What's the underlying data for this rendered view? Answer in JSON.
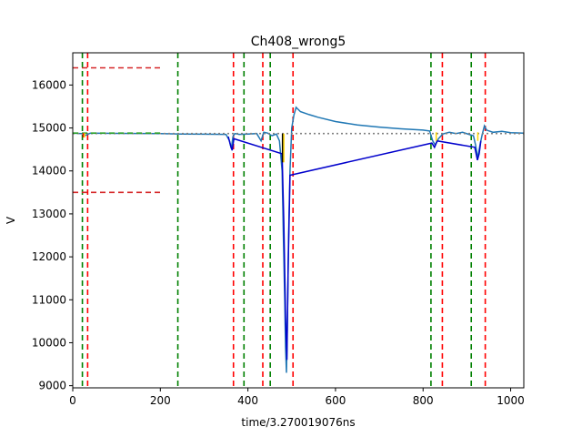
{
  "chart_data": {
    "type": "line",
    "title": "Ch408_wrong5",
    "xlabel": "time/3.270019076ns",
    "ylabel": "V",
    "xlim": [
      0,
      1030
    ],
    "ylim": [
      8950,
      16750
    ],
    "grid": false,
    "x_ticks": [
      "0",
      "200",
      "400",
      "600",
      "800",
      "1000"
    ],
    "y_ticks": [
      "9000",
      "10000",
      "11000",
      "12000",
      "13000",
      "14000",
      "15000",
      "16000"
    ],
    "series": [
      {
        "color": "#1f77b4",
        "style": "solid",
        "points": [
          [
            0,
            14880
          ],
          [
            20,
            14870
          ],
          [
            30,
            14830
          ],
          [
            40,
            14880
          ],
          [
            100,
            14875
          ],
          [
            200,
            14870
          ],
          [
            250,
            14860
          ],
          [
            300,
            14855
          ],
          [
            350,
            14850
          ],
          [
            358,
            14700
          ],
          [
            362,
            14520
          ],
          [
            366,
            14800
          ],
          [
            370,
            14870
          ],
          [
            380,
            14850
          ],
          [
            400,
            14860
          ],
          [
            420,
            14870
          ],
          [
            430,
            14700
          ],
          [
            436,
            14900
          ],
          [
            445,
            14880
          ],
          [
            455,
            14820
          ],
          [
            465,
            14860
          ],
          [
            472,
            14700
          ],
          [
            478,
            14000
          ],
          [
            481,
            12500
          ],
          [
            484,
            11000
          ],
          [
            486,
            9900
          ],
          [
            488,
            9300
          ],
          [
            490,
            10500
          ],
          [
            493,
            12500
          ],
          [
            496,
            14000
          ],
          [
            500,
            15000
          ],
          [
            505,
            15300
          ],
          [
            510,
            15480
          ],
          [
            520,
            15380
          ],
          [
            540,
            15310
          ],
          [
            560,
            15250
          ],
          [
            600,
            15150
          ],
          [
            650,
            15070
          ],
          [
            700,
            15020
          ],
          [
            750,
            14980
          ],
          [
            800,
            14950
          ],
          [
            815,
            14930
          ],
          [
            822,
            14700
          ],
          [
            828,
            14600
          ],
          [
            835,
            14750
          ],
          [
            845,
            14860
          ],
          [
            860,
            14900
          ],
          [
            875,
            14870
          ],
          [
            890,
            14900
          ],
          [
            905,
            14850
          ],
          [
            915,
            14820
          ],
          [
            920,
            14600
          ],
          [
            925,
            14300
          ],
          [
            930,
            14600
          ],
          [
            935,
            14850
          ],
          [
            940,
            15050
          ],
          [
            945,
            14950
          ],
          [
            960,
            14900
          ],
          [
            980,
            14920
          ],
          [
            1000,
            14890
          ],
          [
            1030,
            14880
          ]
        ]
      },
      {
        "color": "#0000cc",
        "style": "solid",
        "points": [
          [
            355,
            14800
          ],
          [
            360,
            14600
          ],
          [
            364,
            14480
          ],
          [
            368,
            14750
          ],
          [
            478,
            14400
          ],
          [
            482,
            12800
          ],
          [
            486,
            10600
          ],
          [
            489,
            9600
          ],
          [
            492,
            11800
          ],
          [
            496,
            13900
          ],
          [
            820,
            14650
          ],
          [
            826,
            14550
          ],
          [
            832,
            14700
          ],
          [
            918,
            14550
          ],
          [
            924,
            14250
          ],
          [
            928,
            14400
          ],
          [
            932,
            14700
          ]
        ]
      },
      {
        "color": "#808080",
        "style": "dotted",
        "points": [
          [
            0,
            14870
          ],
          [
            1030,
            14870
          ]
        ]
      },
      {
        "color": "#2ca02c",
        "style": "dashed",
        "points": [
          [
            0,
            14880
          ],
          [
            200,
            14880
          ]
        ]
      },
      {
        "color": "#d62728",
        "style": "dashed",
        "points": [
          [
            0,
            16400
          ],
          [
            200,
            16400
          ]
        ]
      },
      {
        "color": "#d62728",
        "style": "dashed",
        "points": [
          [
            0,
            13500
          ],
          [
            200,
            13500
          ]
        ]
      }
    ],
    "vlines_green": [
      22,
      240,
      391,
      451,
      818,
      910
    ],
    "vlines_red": [
      34,
      367,
      434,
      503,
      844,
      942
    ],
    "markers": [
      {
        "x": 24,
        "y_low": 14780,
        "y_high": 14880,
        "color": "#ff0000"
      },
      {
        "x": 27,
        "y_low": 14780,
        "y_high": 14880,
        "color": "#ffd700"
      },
      {
        "x": 479,
        "y_low": 14200,
        "y_high": 14870,
        "color": "#000000"
      },
      {
        "x": 482,
        "y_low": 14200,
        "y_high": 14870,
        "color": "#ffd700"
      },
      {
        "x": 830,
        "y_low": 14700,
        "y_high": 14900,
        "color": "#ffd700"
      },
      {
        "x": 925,
        "y_low": 14700,
        "y_high": 14900,
        "color": "#ffd700"
      }
    ]
  }
}
